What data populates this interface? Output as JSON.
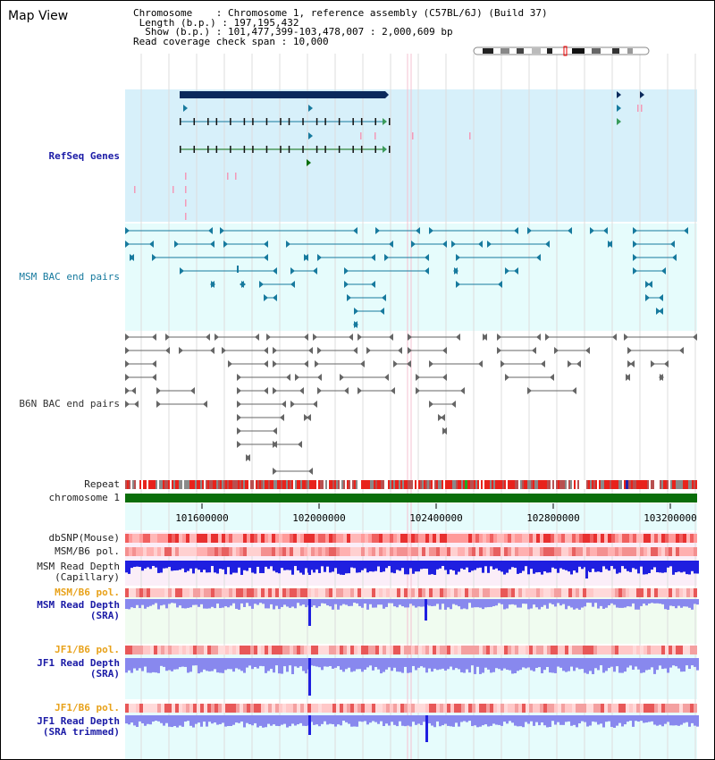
{
  "title": "Map View",
  "info": {
    "chromosome_label": "Chromosome",
    "chromosome_value": "Chromosome 1, reference assembly (C57BL/6J) (Build 37)",
    "length_label": "Length (b.p.)",
    "length_value": "197,195,432",
    "show_label": "Show (b.p.)",
    "show_value": "101,477,399-103,478,007 : 2,000,609 bp",
    "coverage_label": "Read coverage check span",
    "coverage_value": "10,000"
  },
  "tracks": {
    "refseq": "RefSeq Genes",
    "msm_bac": "MSM BAC end pairs",
    "b6n_bac": "B6N BAC end pairs",
    "repeat": "Repeat",
    "chromosome": "chromosome 1",
    "dbsnp": "dbSNP(Mouse)",
    "msm_b6_pol_1": "MSM/B6 pol.",
    "msm_read_depth_cap_1": "MSM Read Depth",
    "msm_read_depth_cap_2": "(Capillary)",
    "msm_b6_pol_2": "MSM/B6 pol.",
    "msm_read_depth_sra_1": "MSM Read Depth",
    "msm_read_depth_sra_2": "(SRA)",
    "jf1_b6_pol_1": "JF1/B6 pol.",
    "jf1_read_depth_sra_1": "JF1 Read Depth",
    "jf1_read_depth_sra_2": "(SRA)",
    "jf1_b6_pol_2": "JF1/B6 pol.",
    "jf1_read_depth_trim_1": "JF1 Read Depth",
    "jf1_read_depth_trim_2": "(SRA trimmed)"
  },
  "ruler": {
    "ticks": [
      "101600000",
      "102000000",
      "102400000",
      "102800000",
      "103200000"
    ]
  },
  "colors": {
    "refseq_bg": "#d7f0fa",
    "msm_bg": "#e6fcfc",
    "ruler_bg": "#e6fcfc",
    "depth_bg_pink": "#fbeef8",
    "depth_bg_green": "#f0fcf0",
    "depth_bg_cyan": "#e6fcfc",
    "gene_navy": "#0b2a5c",
    "msm_teal": "#177a9e",
    "b6n_gray": "#666666",
    "depth_blue": "#1f1fe0",
    "depth_lightblue": "#8888ee",
    "chrom_green": "#0a6e0a"
  }
}
